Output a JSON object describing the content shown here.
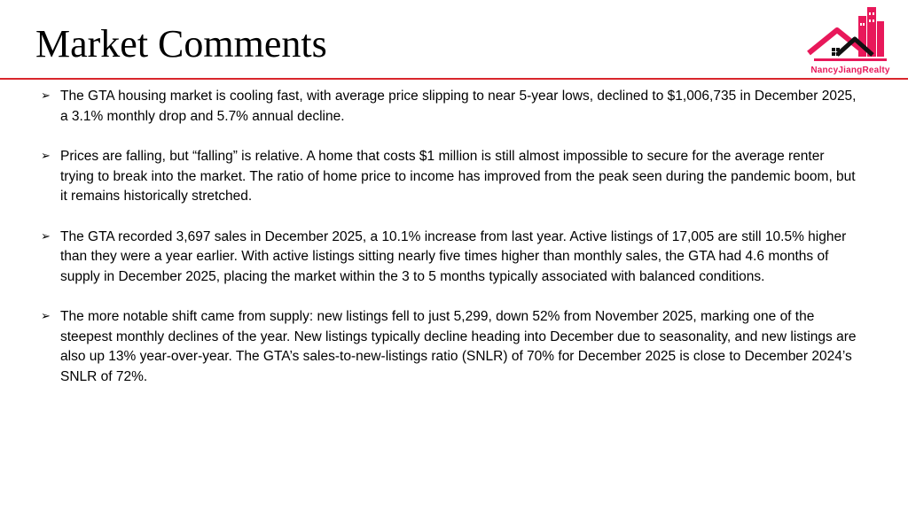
{
  "slide": {
    "title": "Market Comments",
    "accent_color": "#d9262c",
    "logo": {
      "text": "NancyJiangRealty",
      "brand_color": "#e8185a",
      "icon": "house-skyline-icon"
    }
  },
  "bullet_icon": "➢",
  "bullets": [
    "The GTA housing market is cooling fast, with average price slipping to near 5-year lows, declined to $1,006,735 in December 2025, a 3.1% monthly drop and 5.7% annual decline.",
    "Prices are falling, but “falling” is relative. A home that costs $1 million is still almost impossible to secure for the average renter trying to break into the market. The ratio of home price to income has improved from the peak seen during the pandemic boom, but it remains historically stretched.",
    "The GTA recorded 3,697 sales in December 2025, a 10.1% increase from last year. Active listings of 17,005 are still 10.5% higher than they were a year earlier. With active listings sitting nearly five times higher than monthly sales, the GTA had 4.6 months of supply in December 2025, placing the market within the 3 to 5 months typically associated with balanced conditions.",
    "The more notable shift came from supply: new listings fell to just 5,299, down 52% from November 2025, marking one of the steepest monthly declines of the year. New listings typically decline heading into December due to seasonality, and new listings are also up 13% year-over-year. The GTA’s sales-to-new-listings ratio (SNLR) of 70% for December 2025 is close to December 2024’s SNLR of 72%."
  ]
}
